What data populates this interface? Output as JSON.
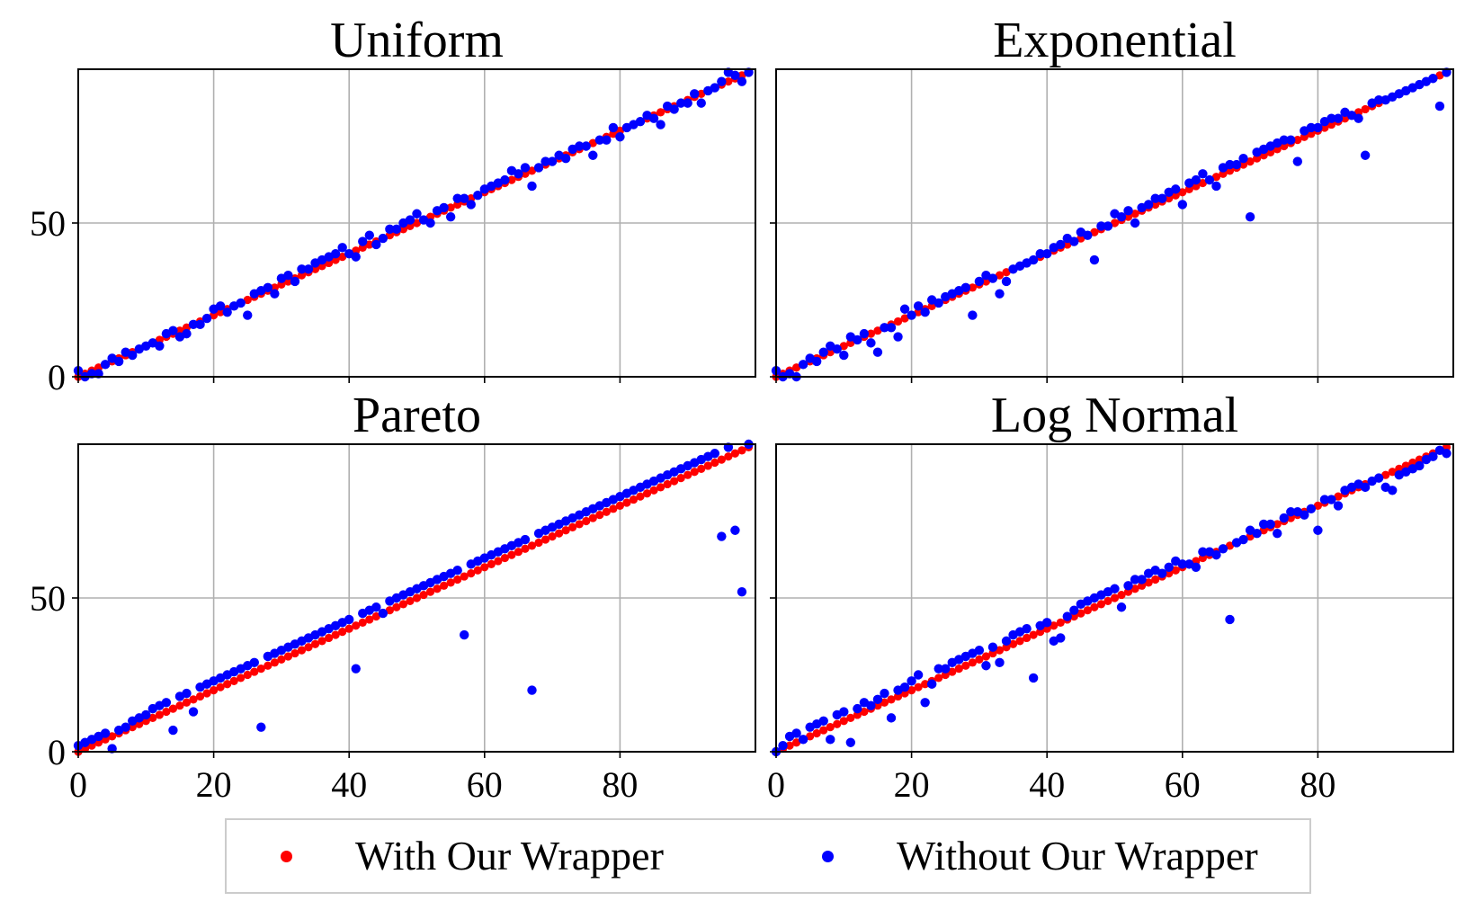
{
  "chart_data": {
    "type": "scatter",
    "layout": "2x2 subplots, shared x and y axes",
    "legend": {
      "placement": "bottom-center",
      "entries": [
        {
          "label": "With Our Wrapper",
          "color": "#ff0000"
        },
        {
          "label": "Without Our Wrapper",
          "color": "#0000ff"
        }
      ]
    },
    "xlim": [
      0,
      100
    ],
    "ylim": [
      0,
      100
    ],
    "xticks": [
      0,
      20,
      40,
      60,
      80
    ],
    "yticks": [
      0,
      50
    ],
    "grid": true,
    "subplots": [
      {
        "title": "Uniform",
        "series": [
          {
            "name": "With Our Wrapper",
            "color": "#ff0000",
            "points": "y = x for x = 0..99"
          },
          {
            "name": "Without Our Wrapper",
            "color": "#0000ff",
            "x": [
              0,
              1,
              2,
              3,
              4,
              5,
              6,
              7,
              8,
              9,
              10,
              11,
              12,
              13,
              14,
              15,
              16,
              17,
              18,
              19,
              20,
              21,
              22,
              23,
              24,
              25,
              26,
              27,
              28,
              29,
              30,
              31,
              32,
              33,
              34,
              35,
              36,
              37,
              38,
              39,
              40,
              41,
              42,
              43,
              44,
              45,
              46,
              47,
              48,
              49,
              50,
              51,
              52,
              53,
              54,
              55,
              56,
              57,
              58,
              59,
              60,
              61,
              62,
              63,
              64,
              65,
              66,
              67,
              68,
              69,
              70,
              71,
              72,
              73,
              74,
              75,
              76,
              77,
              78,
              79,
              80,
              81,
              82,
              83,
              84,
              85,
              86,
              87,
              88,
              89,
              90,
              91,
              92,
              93,
              94,
              95,
              96,
              97,
              98,
              99
            ],
            "y": [
              2,
              0,
              1,
              1,
              4,
              6,
              5,
              8,
              7,
              9,
              10,
              11,
              10,
              14,
              15,
              13,
              14,
              17,
              17,
              19,
              22,
              23,
              21,
              23,
              24,
              20,
              27,
              28,
              29,
              27,
              32,
              33,
              31,
              35,
              35,
              37,
              38,
              39,
              40,
              42,
              40,
              39,
              44,
              46,
              43,
              45,
              48,
              48,
              50,
              51,
              53,
              51,
              50,
              54,
              55,
              52,
              58,
              58,
              56,
              59,
              61,
              62,
              63,
              64,
              67,
              66,
              68,
              62,
              68,
              70,
              70,
              72,
              71,
              74,
              75,
              75,
              72,
              77,
              77,
              81,
              78,
              81,
              82,
              83,
              85,
              84,
              82,
              88,
              87,
              89,
              89,
              92,
              89,
              93,
              94,
              96,
              99,
              98,
              96,
              99
            ]
          }
        ]
      },
      {
        "title": "Exponential",
        "series": [
          {
            "name": "With Our Wrapper",
            "color": "#ff0000",
            "points": "y = x for x = 0..99"
          },
          {
            "name": "Without Our Wrapper",
            "color": "#0000ff",
            "x": [
              0,
              1,
              2,
              3,
              4,
              5,
              6,
              7,
              8,
              9,
              10,
              11,
              12,
              13,
              14,
              15,
              16,
              17,
              18,
              19,
              20,
              21,
              22,
              23,
              24,
              25,
              26,
              27,
              28,
              29,
              30,
              31,
              32,
              33,
              34,
              35,
              36,
              37,
              38,
              39,
              40,
              41,
              42,
              43,
              44,
              45,
              46,
              47,
              48,
              49,
              50,
              51,
              52,
              53,
              54,
              55,
              56,
              57,
              58,
              59,
              60,
              61,
              62,
              63,
              64,
              65,
              66,
              67,
              68,
              69,
              70,
              71,
              72,
              73,
              74,
              75,
              76,
              77,
              78,
              79,
              80,
              81,
              82,
              83,
              84,
              85,
              86,
              87,
              88,
              89,
              90,
              91,
              92,
              93,
              94,
              95,
              96,
              97,
              98,
              99
            ],
            "y": [
              2,
              0,
              1,
              0,
              4,
              6,
              5,
              8,
              10,
              9,
              7,
              13,
              12,
              14,
              11,
              8,
              16,
              16,
              13,
              22,
              20,
              23,
              21,
              25,
              24,
              26,
              27,
              28,
              29,
              20,
              31,
              33,
              32,
              27,
              31,
              35,
              36,
              37,
              38,
              40,
              40,
              42,
              43,
              45,
              44,
              47,
              46,
              38,
              49,
              49,
              53,
              52,
              54,
              50,
              55,
              56,
              58,
              58,
              60,
              61,
              56,
              63,
              64,
              66,
              64,
              62,
              68,
              69,
              69,
              71,
              52,
              73,
              74,
              75,
              76,
              77,
              77,
              70,
              80,
              81,
              81,
              83,
              84,
              84,
              86,
              85,
              84,
              72,
              89,
              90,
              90,
              91,
              92,
              93,
              94,
              95,
              96,
              97,
              88,
              99
            ]
          }
        ]
      },
      {
        "title": "Pareto",
        "series": [
          {
            "name": "With Our Wrapper",
            "color": "#ff0000",
            "points": "y = x for x = 0..99"
          },
          {
            "name": "Without Our Wrapper",
            "color": "#0000ff",
            "x": [
              0,
              1,
              2,
              3,
              4,
              5,
              6,
              7,
              8,
              9,
              10,
              11,
              12,
              13,
              14,
              15,
              16,
              17,
              18,
              19,
              20,
              21,
              22,
              23,
              24,
              25,
              26,
              27,
              28,
              29,
              30,
              31,
              32,
              33,
              34,
              35,
              36,
              37,
              38,
              39,
              40,
              41,
              42,
              43,
              44,
              45,
              46,
              47,
              48,
              49,
              50,
              51,
              52,
              53,
              54,
              55,
              56,
              57,
              58,
              59,
              60,
              61,
              62,
              63,
              64,
              65,
              66,
              67,
              68,
              69,
              70,
              71,
              72,
              73,
              74,
              75,
              76,
              77,
              78,
              79,
              80,
              81,
              82,
              83,
              84,
              85,
              86,
              87,
              88,
              89,
              90,
              91,
              92,
              93,
              94,
              95,
              96,
              97,
              98,
              99
            ],
            "y": [
              2,
              3,
              4,
              5,
              6,
              1,
              7,
              8,
              10,
              11,
              12,
              14,
              15,
              16,
              7,
              18,
              19,
              13,
              21,
              22,
              23,
              24,
              25,
              26,
              27,
              28,
              29,
              8,
              31,
              32,
              33,
              34,
              35,
              36,
              37,
              38,
              39,
              40,
              41,
              42,
              43,
              27,
              45,
              46,
              47,
              45,
              49,
              50,
              51,
              52,
              53,
              54,
              55,
              56,
              57,
              58,
              59,
              38,
              61,
              62,
              63,
              64,
              65,
              66,
              67,
              68,
              69,
              20,
              71,
              72,
              73,
              74,
              75,
              76,
              77,
              78,
              79,
              80,
              81,
              82,
              83,
              84,
              85,
              86,
              87,
              88,
              89,
              90,
              91,
              92,
              93,
              94,
              95,
              96,
              97,
              70,
              99,
              72,
              52,
              100
            ]
          }
        ]
      },
      {
        "title": "Log Normal",
        "series": [
          {
            "name": "With Our Wrapper",
            "color": "#ff0000",
            "points": "y = x for x = 0..99"
          },
          {
            "name": "Without Our Wrapper",
            "color": "#0000ff",
            "x": [
              0,
              1,
              2,
              3,
              4,
              5,
              6,
              7,
              8,
              9,
              10,
              11,
              12,
              13,
              14,
              15,
              16,
              17,
              18,
              19,
              20,
              21,
              22,
              23,
              24,
              25,
              26,
              27,
              28,
              29,
              30,
              31,
              32,
              33,
              34,
              35,
              36,
              37,
              38,
              39,
              40,
              41,
              42,
              43,
              44,
              45,
              46,
              47,
              48,
              49,
              50,
              51,
              52,
              53,
              54,
              55,
              56,
              57,
              58,
              59,
              60,
              61,
              62,
              63,
              64,
              65,
              66,
              67,
              68,
              69,
              70,
              71,
              72,
              73,
              74,
              75,
              76,
              77,
              78,
              79,
              80,
              81,
              82,
              83,
              84,
              85,
              86,
              87,
              88,
              89,
              90,
              91,
              92,
              93,
              94,
              95,
              96,
              97,
              98,
              99
            ],
            "y": [
              0,
              2,
              5,
              6,
              4,
              8,
              9,
              10,
              4,
              12,
              13,
              3,
              14,
              16,
              15,
              17,
              19,
              11,
              20,
              21,
              23,
              25,
              16,
              22,
              27,
              27,
              29,
              30,
              31,
              32,
              33,
              28,
              34,
              29,
              36,
              38,
              39,
              40,
              24,
              41,
              42,
              36,
              37,
              44,
              46,
              48,
              49,
              50,
              51,
              52,
              53,
              47,
              54,
              56,
              56,
              58,
              59,
              58,
              60,
              62,
              61,
              61,
              60,
              65,
              65,
              64,
              66,
              43,
              68,
              69,
              72,
              71,
              74,
              74,
              71,
              76,
              78,
              78,
              77,
              79,
              72,
              82,
              82,
              80,
              85,
              86,
              87,
              86,
              88,
              89,
              86,
              85,
              90,
              91,
              92,
              93,
              95,
              96,
              98,
              97
            ]
          }
        ]
      }
    ]
  }
}
